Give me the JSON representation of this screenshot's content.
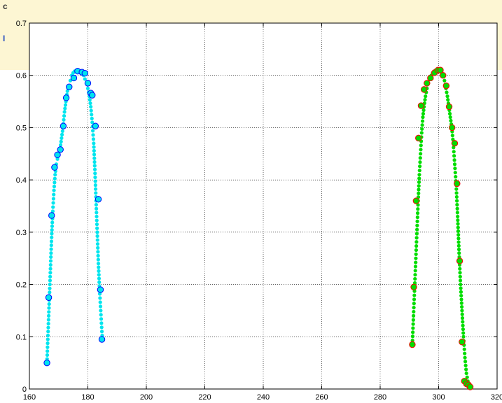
{
  "chart_data": {
    "type": "scatter",
    "title": "",
    "xlabel": "",
    "ylabel": "",
    "xlim": [
      160,
      320
    ],
    "ylim": [
      0,
      0.7
    ],
    "xticks": [
      160,
      180,
      200,
      220,
      240,
      260,
      280,
      300,
      320
    ],
    "yticks": [
      0,
      0.1,
      0.2,
      0.3,
      0.4,
      0.5,
      0.6,
      0.7
    ],
    "xtick_labels": [
      "160",
      "180",
      "200",
      "220",
      "240",
      "260",
      "280",
      "300",
      "320"
    ],
    "ytick_labels": [
      "0",
      "0.1",
      "0.2",
      "0.3",
      "0.4",
      "0.5",
      "0.6",
      "0.7"
    ],
    "grid": true,
    "legend": "none",
    "series": [
      {
        "style": "dense dotted curve",
        "color": "#00e5ee",
        "x": [
          166.0,
          166.4,
          166.8,
          167.2,
          167.6,
          168.0,
          168.4,
          168.8,
          169.2,
          169.6,
          170.0,
          170.5,
          171.0,
          171.5,
          172.0,
          172.5,
          173.0,
          173.5,
          174.0,
          174.5,
          175.0,
          175.5,
          176.0,
          176.5,
          177.0,
          177.5,
          178.0,
          178.5,
          179.0,
          179.5,
          180.0,
          180.5,
          181.0,
          181.5,
          182.0,
          182.4,
          182.8,
          183.2,
          183.6,
          184.0,
          184.4,
          184.8,
          185.0
        ],
        "y": [
          0.05,
          0.11,
          0.17,
          0.23,
          0.29,
          0.34,
          0.38,
          0.41,
          0.43,
          0.44,
          0.45,
          0.46,
          0.48,
          0.5,
          0.53,
          0.55,
          0.57,
          0.58,
          0.59,
          0.6,
          0.605,
          0.608,
          0.608,
          0.607,
          0.606,
          0.605,
          0.603,
          0.6,
          0.593,
          0.585,
          0.575,
          0.56,
          0.54,
          0.51,
          0.47,
          0.42,
          0.36,
          0.3,
          0.24,
          0.19,
          0.15,
          0.11,
          0.095
        ]
      },
      {
        "style": "open circles",
        "color": "#0000ff",
        "fill": "#00e5ee",
        "x": [
          166.0,
          166.6,
          167.6,
          168.6,
          169.6,
          170.6,
          171.6,
          172.6,
          173.6,
          175.2,
          176.5,
          178.0,
          179.0,
          180.0,
          181.0,
          181.5,
          182.6,
          183.6,
          184.3,
          184.8
        ],
        "y": [
          0.05,
          0.175,
          0.332,
          0.424,
          0.448,
          0.458,
          0.503,
          0.557,
          0.578,
          0.595,
          0.608,
          0.606,
          0.604,
          0.585,
          0.566,
          0.562,
          0.503,
          0.363,
          0.19,
          0.095
        ]
      },
      {
        "style": "dense dotted curve",
        "color": "#00dd00",
        "x": [
          291.0,
          291.4,
          291.8,
          292.2,
          292.6,
          293.0,
          293.4,
          293.8,
          294.2,
          294.6,
          295.0,
          295.5,
          296.0,
          296.5,
          297.0,
          297.5,
          298.0,
          298.5,
          299.0,
          299.5,
          300.0,
          300.5,
          301.0,
          301.5,
          302.0,
          302.5,
          303.0,
          303.5,
          304.0,
          304.5,
          305.0,
          305.5,
          306.0,
          306.5,
          307.0,
          307.5,
          308.0,
          308.5,
          309.0,
          309.5,
          310.0,
          310.5,
          310.8
        ],
        "y": [
          0.085,
          0.14,
          0.195,
          0.25,
          0.305,
          0.36,
          0.41,
          0.45,
          0.49,
          0.52,
          0.54,
          0.56,
          0.575,
          0.585,
          0.595,
          0.6,
          0.605,
          0.608,
          0.61,
          0.61,
          0.612,
          0.61,
          0.607,
          0.6,
          0.59,
          0.575,
          0.56,
          0.54,
          0.52,
          0.5,
          0.47,
          0.43,
          0.39,
          0.33,
          0.26,
          0.2,
          0.15,
          0.1,
          0.06,
          0.03,
          0.015,
          0.008,
          0.004
        ]
      },
      {
        "style": "open circles",
        "color": "#ff0000",
        "fill": "#00dd00",
        "x": [
          291.0,
          291.5,
          292.3,
          293.1,
          294.0,
          295.0,
          296.0,
          297.2,
          298.6,
          299.8,
          300.6,
          301.5,
          302.6,
          303.6,
          304.6,
          305.5,
          306.3,
          307.2,
          308.0,
          308.8,
          309.5,
          310.2,
          310.8
        ],
        "y": [
          0.085,
          0.195,
          0.36,
          0.48,
          0.542,
          0.573,
          0.585,
          0.595,
          0.605,
          0.61,
          0.61,
          0.6,
          0.58,
          0.54,
          0.5,
          0.47,
          0.393,
          0.245,
          0.09,
          0.015,
          0.01,
          0.008,
          0.004
        ]
      }
    ]
  }
}
